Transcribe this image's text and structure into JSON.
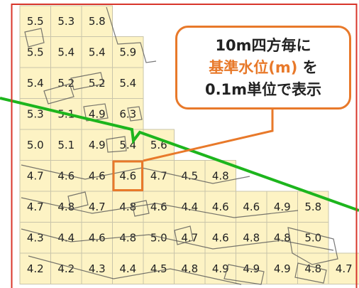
{
  "map": {
    "colors": {
      "cell_fill": "#fdf3c4",
      "cell_border": "#c9c4aa",
      "frame": "#d8362b",
      "boundary_line": "#1db51d",
      "parcel_lines": "#555555",
      "accent": "#e8792a"
    },
    "grid_rows": [
      {
        "cells": [
          {
            "v": "5.5",
            "c": 0
          },
          {
            "v": "5.3",
            "c": 1
          },
          {
            "v": "5.8",
            "c": 2
          }
        ]
      },
      {
        "cells": [
          {
            "v": "5.5",
            "c": 0
          },
          {
            "v": "5.4",
            "c": 1
          },
          {
            "v": "5.4",
            "c": 2
          },
          {
            "v": "5.9",
            "c": 3
          }
        ]
      },
      {
        "cells": [
          {
            "v": "5.4",
            "c": 0
          },
          {
            "v": "5.2",
            "c": 1
          },
          {
            "v": "5.2",
            "c": 2
          },
          {
            "v": "5.4",
            "c": 3
          }
        ]
      },
      {
        "cells": [
          {
            "v": "5.3",
            "c": 0
          },
          {
            "v": "5.1",
            "c": 1
          },
          {
            "v": "4.9",
            "c": 2
          },
          {
            "v": "6.3",
            "c": 3
          }
        ]
      },
      {
        "cells": [
          {
            "v": "5.0",
            "c": 0
          },
          {
            "v": "5.1",
            "c": 1
          },
          {
            "v": "4.9",
            "c": 2
          },
          {
            "v": "5.4",
            "c": 3
          },
          {
            "v": "5.6",
            "c": 4
          }
        ]
      },
      {
        "cells": [
          {
            "v": "4.7",
            "c": 0
          },
          {
            "v": "4.6",
            "c": 1
          },
          {
            "v": "4.6",
            "c": 2
          },
          {
            "v": "4.6",
            "c": 3
          },
          {
            "v": "4.7",
            "c": 4
          },
          {
            "v": "4.5",
            "c": 5
          },
          {
            "v": "4.8",
            "c": 6
          }
        ]
      },
      {
        "cells": [
          {
            "v": "4.7",
            "c": 0
          },
          {
            "v": "4.8",
            "c": 1
          },
          {
            "v": "4.7",
            "c": 2
          },
          {
            "v": "4.8",
            "c": 3
          },
          {
            "v": "4.6",
            "c": 4
          },
          {
            "v": "4.4",
            "c": 5
          },
          {
            "v": "4.6",
            "c": 6
          },
          {
            "v": "4.6",
            "c": 7
          },
          {
            "v": "4.9",
            "c": 8
          },
          {
            "v": "5.8",
            "c": 9
          }
        ]
      },
      {
        "cells": [
          {
            "v": "4.3",
            "c": 0
          },
          {
            "v": "4.4",
            "c": 1
          },
          {
            "v": "4.6",
            "c": 2
          },
          {
            "v": "4.8",
            "c": 3
          },
          {
            "v": "5.0",
            "c": 4
          },
          {
            "v": "4.7",
            "c": 5
          },
          {
            "v": "4.6",
            "c": 6
          },
          {
            "v": "4.8",
            "c": 7
          },
          {
            "v": "4.8",
            "c": 8
          },
          {
            "v": "5.0",
            "c": 9
          }
        ]
      },
      {
        "cells": [
          {
            "v": "4.2",
            "c": 0
          },
          {
            "v": "4.2",
            "c": 1
          },
          {
            "v": "4.3",
            "c": 2
          },
          {
            "v": "4.4",
            "c": 3
          },
          {
            "v": "4.5",
            "c": 4
          },
          {
            "v": "4.8",
            "c": 5
          },
          {
            "v": "4.9",
            "c": 6
          },
          {
            "v": "4.9",
            "c": 7
          },
          {
            "v": "4.9",
            "c": 8
          },
          {
            "v": "4.8",
            "c": 9
          },
          {
            "v": "4.7",
            "c": 10
          }
        ]
      }
    ],
    "highlighted_cell": {
      "row": 5,
      "col": 3
    }
  },
  "callout": {
    "line1": "10m四方毎に",
    "line2_highlight": "基準水位(m)",
    "line2_rest": " を",
    "line3": "0.1m単位で表示"
  }
}
